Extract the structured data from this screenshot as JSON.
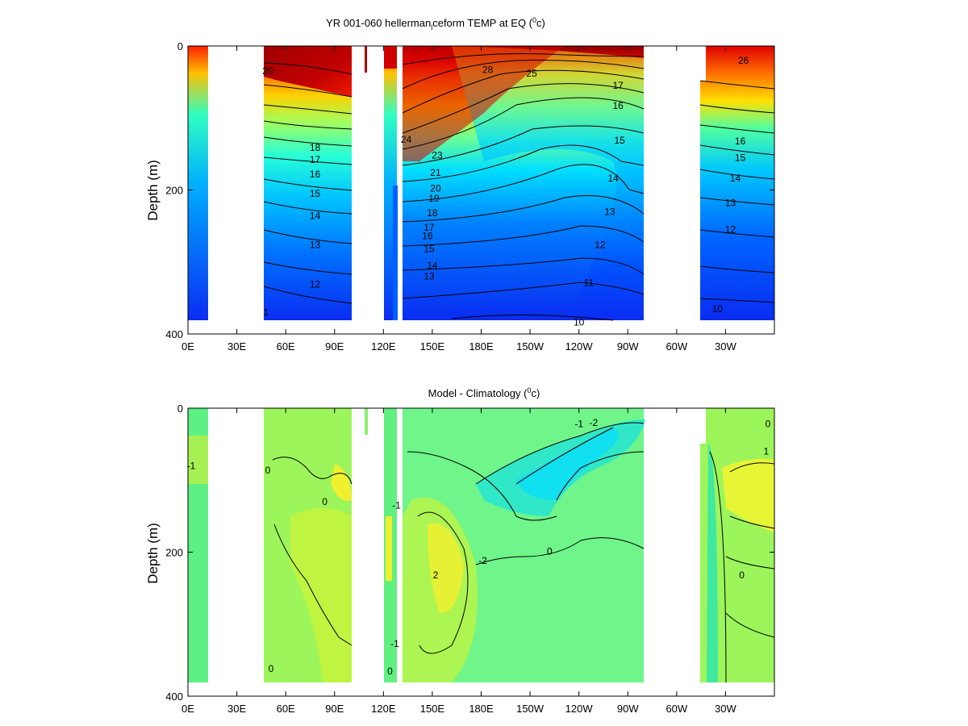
{
  "chart_data": [
    {
      "type": "heatmap",
      "title_main": "YR 001-060 hellerman",
      "title_sub": "l",
      "title_rest": "ceform TEMP at EQ (",
      "title_sup": "0",
      "title_unit": "c)",
      "ylabel": "Depth (m)",
      "x_ticks": [
        "0E",
        "30E",
        "60E",
        "90E",
        "120E",
        "150E",
        "180E",
        "150W",
        "120W",
        "90W",
        "60W",
        "30W"
      ],
      "y_ticks": [
        "0",
        "200",
        "400"
      ],
      "xlim": [
        0,
        360
      ],
      "ylim": [
        400,
        0
      ],
      "colormap": "jet",
      "value_range": [
        9,
        29
      ],
      "contour_labels": [
        {
          "value": "20",
          "lon": 49,
          "depth": 35
        },
        {
          "value": "18",
          "lon": 78,
          "depth": 141
        },
        {
          "value": "17",
          "lon": 78,
          "depth": 158
        },
        {
          "value": "16",
          "lon": 78,
          "depth": 178
        },
        {
          "value": "15",
          "lon": 78,
          "depth": 205
        },
        {
          "value": "14",
          "lon": 78,
          "depth": 236
        },
        {
          "value": "13",
          "lon": 78,
          "depth": 276
        },
        {
          "value": "12",
          "lon": 78,
          "depth": 331
        },
        {
          "value": "1",
          "lon": 48,
          "depth": 370
        },
        {
          "value": "28",
          "lon": 184,
          "depth": 33
        },
        {
          "value": "25",
          "lon": 211,
          "depth": 38
        },
        {
          "value": "23",
          "lon": 153,
          "depth": 152
        },
        {
          "value": "21",
          "lon": 152,
          "depth": 176
        },
        {
          "value": "20",
          "lon": 152,
          "depth": 198
        },
        {
          "value": "19",
          "lon": 151,
          "depth": 212
        },
        {
          "value": "18",
          "lon": 150,
          "depth": 232
        },
        {
          "value": "17",
          "lon": 148,
          "depth": 252
        },
        {
          "value": "16",
          "lon": 147,
          "depth": 264
        },
        {
          "value": "15",
          "lon": 148,
          "depth": 282
        },
        {
          "value": "14",
          "lon": 150,
          "depth": 305
        },
        {
          "value": "13",
          "lon": 148,
          "depth": 320
        },
        {
          "value": "24",
          "lon": 134,
          "depth": 130
        },
        {
          "value": "17",
          "lon": 264,
          "depth": 55
        },
        {
          "value": "16",
          "lon": 264,
          "depth": 83
        },
        {
          "value": "15",
          "lon": 265,
          "depth": 131
        },
        {
          "value": "14",
          "lon": 261,
          "depth": 184
        },
        {
          "value": "13",
          "lon": 259,
          "depth": 230
        },
        {
          "value": "12",
          "lon": 253,
          "depth": 276
        },
        {
          "value": "11",
          "lon": 246,
          "depth": 329
        },
        {
          "value": "10",
          "lon": 240,
          "depth": 384
        },
        {
          "value": "26",
          "lon": 341,
          "depth": 20
        },
        {
          "value": "16",
          "lon": 339,
          "depth": 132
        },
        {
          "value": "15",
          "lon": 339,
          "depth": 155
        },
        {
          "value": "14",
          "lon": 336,
          "depth": 184
        },
        {
          "value": "13",
          "lon": 333,
          "depth": 218
        },
        {
          "value": "12",
          "lon": 333,
          "depth": 255
        },
        {
          "value": "10",
          "lon": 325,
          "depth": 365
        }
      ]
    },
    {
      "type": "heatmap",
      "title_main": "Model - Climatology (",
      "title_sup": "0",
      "title_unit": "c)",
      "ylabel": "Depth (m)",
      "x_ticks": [
        "0E",
        "30E",
        "60E",
        "90E",
        "120E",
        "150E",
        "180E",
        "150W",
        "120W",
        "90W",
        "60W",
        "30W"
      ],
      "y_ticks": [
        "0",
        "200",
        "400"
      ],
      "xlim": [
        0,
        360
      ],
      "ylim": [
        400,
        0
      ],
      "colormap": "jet",
      "value_range": [
        -6,
        6
      ],
      "contour_labels": [
        {
          "value": "-1",
          "lon": 240,
          "depth": 22
        },
        {
          "value": "-2",
          "lon": 249,
          "depth": 20
        },
        {
          "value": "-2",
          "lon": 181,
          "depth": 212
        },
        {
          "value": "2",
          "lon": 152,
          "depth": 232
        },
        {
          "value": "0",
          "lon": 222,
          "depth": 199
        },
        {
          "value": "0",
          "lon": 49,
          "depth": 86
        },
        {
          "value": "0",
          "lon": 84,
          "depth": 130
        },
        {
          "value": "0",
          "lon": 340,
          "depth": 232
        },
        {
          "value": "0",
          "lon": 356,
          "depth": 22
        },
        {
          "value": "1",
          "lon": 355,
          "depth": 60
        },
        {
          "value": "0",
          "lon": 51,
          "depth": 362
        },
        {
          "value": "0",
          "lon": 124,
          "depth": 365
        },
        {
          "value": "-1",
          "lon": 128,
          "depth": 135
        },
        {
          "value": "-1",
          "lon": 2,
          "depth": 80
        },
        {
          "value": "-1",
          "lon": 127,
          "depth": 327
        }
      ]
    }
  ]
}
